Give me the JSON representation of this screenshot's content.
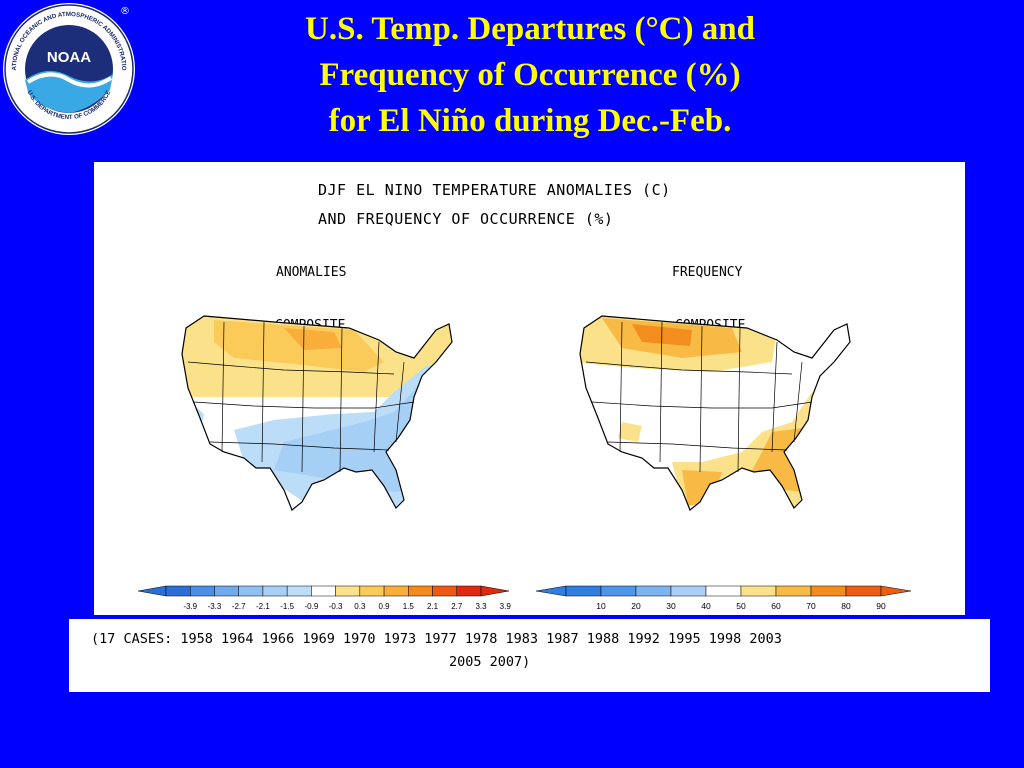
{
  "slide": {
    "title_lines": [
      "U.S. Temp. Departures (°C) and",
      "Frequency of Occurrence (%)",
      "for El Niño during Dec.-Feb."
    ]
  },
  "logo": {
    "text": "NOAA",
    "ring_text": "NATIONAL OCEANIC AND ATMOSPHERIC ADMINISTRATION",
    "ring_text_bottom": "U.S. DEPARTMENT OF COMMERCE",
    "registered_mark": "®"
  },
  "figure": {
    "title_lines": [
      "DJF EL NINO TEMPERATURE ANOMALIES (C)",
      "AND FREQUENCY OF OCCURRENCE (%)"
    ],
    "left_panel": {
      "label": "ANOMALIES",
      "sublabel": "COMPOSITE"
    },
    "right_panel": {
      "label": "FREQUENCY",
      "sublabel": "COMPOSITE"
    },
    "left_scale": {
      "ticks": [
        "-3.9",
        "-3.3",
        "-2.7",
        "-2.1",
        "-1.5",
        "-0.9",
        "-0.3",
        "0.3",
        "0.9",
        "1.5",
        "2.1",
        "2.7",
        "3.3",
        "3.9"
      ],
      "colors": [
        "#2B6FD6",
        "#4C8FE6",
        "#6FA9EE",
        "#8EC0F2",
        "#A6CFF5",
        "#BCDDF8",
        "#FFFFFF",
        "#FBE28A",
        "#FBCB5A",
        "#F8AE38",
        "#F48A1C",
        "#EE5A14",
        "#E0290E"
      ]
    },
    "right_scale": {
      "ticks": [
        "10",
        "20",
        "30",
        "40",
        "50",
        "60",
        "70",
        "80",
        "90"
      ],
      "colors": [
        "#2F7EE0",
        "#4E96EC",
        "#7CB4F2",
        "#A9CFF6",
        "#FFFFFF",
        "#FBE28A",
        "#F8BA44",
        "#F38E1E",
        "#EC5E14"
      ]
    }
  },
  "cases": {
    "line1": "(17 CASES:  1958 1964 1966 1969 1970 1973 1977 1978 1983 1987 1988 1992 1995 1998 2003",
    "line2": "2005 2007)"
  }
}
